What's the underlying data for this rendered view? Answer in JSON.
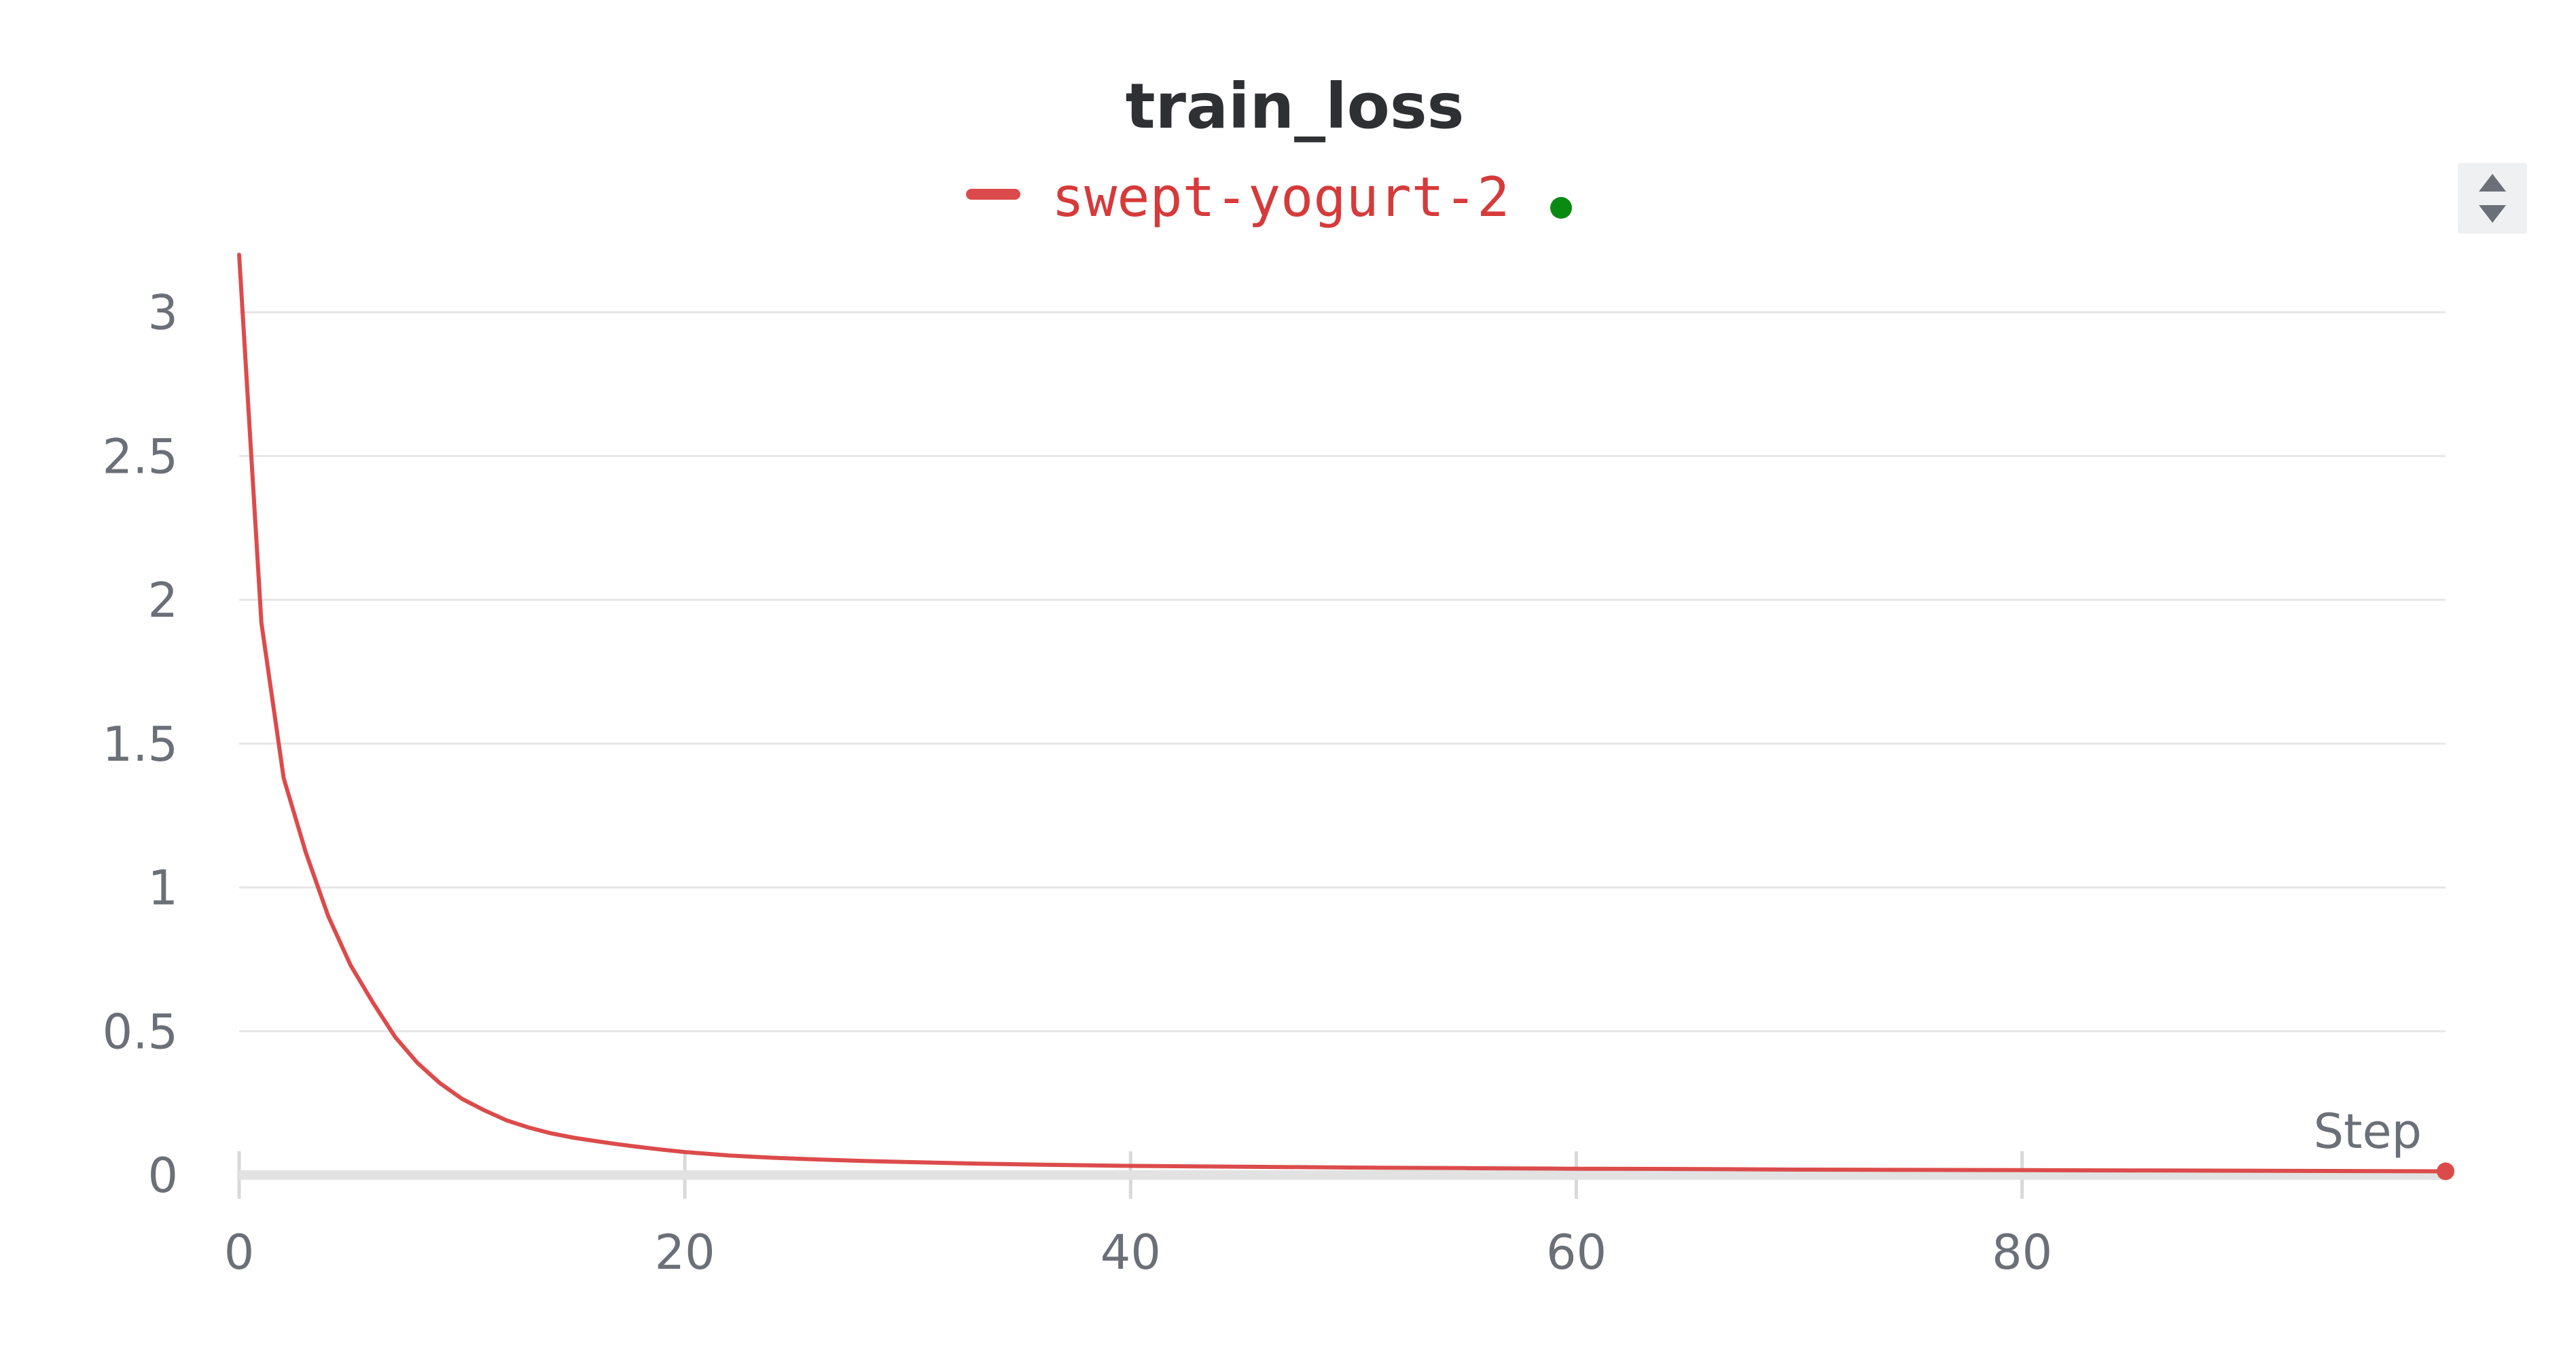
{
  "colors": {
    "series": "#dc4b4b",
    "legend_text": "#d63a3a",
    "status_dot": "#0a8a13",
    "text": "#2f3033",
    "tick_text": "#6b6f78",
    "scroll_bg": "#eef0f2",
    "scroll_arrow": "#6b6f78"
  },
  "legend": {
    "icons": {
      "status": "running-status-dot-icon",
      "scroll_up": "chevron-up-icon",
      "scroll_down": "chevron-down-icon"
    }
  },
  "chart_data": {
    "type": "line",
    "title": "train_loss",
    "xlabel": "Step",
    "ylabel": "",
    "xlim": [
      0,
      99
    ],
    "ylim": [
      0,
      3.2
    ],
    "x_ticks": [
      0,
      20,
      40,
      60,
      80
    ],
    "y_ticks": [
      0,
      0.5,
      1,
      1.5,
      2,
      2.5,
      3
    ],
    "x_tick_labels": [
      "0",
      "20",
      "40",
      "60",
      "80"
    ],
    "y_tick_labels": [
      "0",
      "0.5",
      "1",
      "1.5",
      "2",
      "2.5",
      "3"
    ],
    "grid": "horizontal",
    "legend_position": "top-center",
    "series": [
      {
        "name": "swept-yogurt-2",
        "x": [
          0,
          1,
          2,
          3,
          4,
          5,
          6,
          7,
          8,
          9,
          10,
          11,
          12,
          13,
          14,
          15,
          16,
          17,
          18,
          19,
          20,
          22,
          24,
          26,
          28,
          30,
          33,
          36,
          40,
          45,
          50,
          55,
          60,
          65,
          70,
          75,
          80,
          85,
          90,
          95,
          99
        ],
        "y": [
          3.2,
          1.92,
          1.38,
          1.12,
          0.9,
          0.73,
          0.6,
          0.48,
          0.39,
          0.32,
          0.265,
          0.225,
          0.19,
          0.165,
          0.145,
          0.13,
          0.118,
          0.107,
          0.097,
          0.088,
          0.08,
          0.068,
          0.06,
          0.054,
          0.049,
          0.045,
          0.04,
          0.036,
          0.032,
          0.029,
          0.026,
          0.024,
          0.022,
          0.021,
          0.019,
          0.018,
          0.017,
          0.016,
          0.015,
          0.014,
          0.013
        ]
      }
    ]
  }
}
